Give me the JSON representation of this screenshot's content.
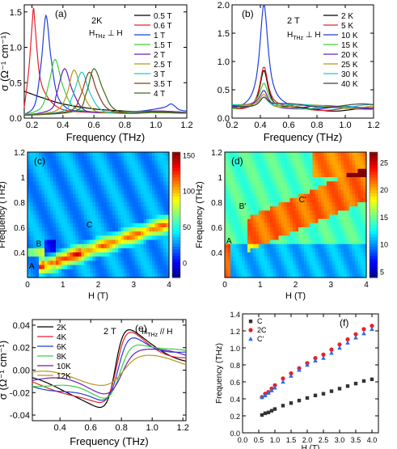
{
  "figure": {
    "chart_data": [
      {
        "panel": "(a)",
        "type": "line",
        "annotation": "2K",
        "annotation_sub": "H_THz ⊥ H",
        "xlabel": "Frequency (THz)",
        "ylabel": "σ (Ω⁻¹ cm⁻¹)",
        "xlim": [
          0.15,
          1.2
        ],
        "ylim": [
          0,
          1.6
        ],
        "xticks": [
          0.2,
          0.4,
          0.6,
          0.8,
          1.0,
          1.2
        ],
        "xtick_labels": [
          "0.2",
          "0.4",
          "0.6",
          "0.8",
          "1.0",
          "1.2"
        ],
        "yticks": [
          0,
          0.5,
          1.0,
          1.5
        ],
        "ytick_labels": [
          "0.0",
          "0.5",
          "1.0",
          "1.5"
        ],
        "legend_position": "right",
        "series": [
          {
            "name": "0.5 T",
            "color": "#000000",
            "x": [
              0.15,
              0.25,
              0.4,
              0.6,
              0.8,
              1.0,
              1.2
            ],
            "y": [
              0.38,
              0.3,
              0.2,
              0.13,
              0.1,
              0.08,
              0.07
            ]
          },
          {
            "name": "0.6 T",
            "color": "#e8202a",
            "x": [
              0.15,
              0.18,
              0.2,
              0.21,
              0.22,
              0.25,
              0.3,
              0.4,
              0.6,
              0.8,
              1.0,
              1.2
            ],
            "y": [
              0.15,
              0.7,
              1.3,
              1.55,
              1.3,
              0.6,
              0.3,
              0.12,
              0.08,
              0.08,
              0.1,
              0.08
            ]
          },
          {
            "name": "1 T",
            "color": "#1f3fdc",
            "x": [
              0.15,
              0.22,
              0.26,
              0.29,
              0.32,
              0.36,
              0.42,
              0.5,
              0.7,
              0.9,
              1.05,
              1.1,
              1.15,
              1.2
            ],
            "y": [
              0.05,
              0.2,
              0.8,
              1.45,
              0.9,
              0.35,
              0.15,
              0.1,
              0.08,
              0.1,
              0.15,
              0.2,
              0.12,
              0.1
            ]
          },
          {
            "name": "1.5 T",
            "color": "#3ccf3c",
            "x": [
              0.15,
              0.26,
              0.31,
              0.35,
              0.4,
              0.46,
              0.55,
              0.8,
              1.0,
              1.2
            ],
            "y": [
              0.05,
              0.15,
              0.5,
              0.83,
              0.45,
              0.18,
              0.1,
              0.09,
              0.1,
              0.08
            ]
          },
          {
            "name": "2 T",
            "color": "#6a1fb8",
            "x": [
              0.15,
              0.32,
              0.36,
              0.41,
              0.46,
              0.52,
              0.6,
              0.8,
              1.0,
              1.2
            ],
            "y": [
              0.04,
              0.12,
              0.35,
              0.7,
              0.4,
              0.15,
              0.08,
              0.08,
              0.1,
              0.08
            ]
          },
          {
            "name": "2.5 T",
            "color": "#b8961c",
            "x": [
              0.15,
              0.35,
              0.42,
              0.47,
              0.52,
              0.58,
              0.66,
              0.85,
              1.0,
              1.2
            ],
            "y": [
              0.04,
              0.1,
              0.3,
              0.68,
              0.4,
              0.15,
              0.08,
              0.08,
              0.08,
              0.07
            ]
          },
          {
            "name": "3 T",
            "color": "#1cc9c9",
            "x": [
              0.15,
              0.4,
              0.46,
              0.52,
              0.57,
              0.63,
              0.72,
              0.9,
              1.1,
              1.2
            ],
            "y": [
              0.04,
              0.1,
              0.3,
              0.65,
              0.38,
              0.15,
              0.07,
              0.08,
              0.08,
              0.07
            ]
          },
          {
            "name": "3.5 T",
            "color": "#8a3b1c",
            "x": [
              0.15,
              0.44,
              0.51,
              0.57,
              0.62,
              0.68,
              0.78,
              0.95,
              1.1,
              1.2
            ],
            "y": [
              0.04,
              0.1,
              0.3,
              0.65,
              0.38,
              0.15,
              0.07,
              0.08,
              0.08,
              0.07
            ]
          },
          {
            "name": "4 T",
            "color": "#3f6a1c",
            "x": [
              0.15,
              0.48,
              0.55,
              0.6,
              0.66,
              0.72,
              0.82,
              1.0,
              1.2
            ],
            "y": [
              0.04,
              0.1,
              0.35,
              0.7,
              0.4,
              0.15,
              0.07,
              0.08,
              0.07
            ]
          }
        ]
      },
      {
        "panel": "(b)",
        "type": "line",
        "annotation": "2 T",
        "annotation_sub": "H_THz ⊥ H",
        "xlabel": "Frequency (THz)",
        "xlim": [
          0.2,
          1.2
        ],
        "ylim": [
          0,
          2.0
        ],
        "xticks": [
          0.2,
          0.4,
          0.6,
          0.8,
          1.0,
          1.2
        ],
        "xtick_labels": [
          "0.2",
          "0.4",
          "0.6",
          "0.8",
          "1.0",
          "1.2"
        ],
        "yticks": [
          0,
          0.5,
          1.0,
          1.5,
          2.0
        ],
        "ytick_labels": [
          "0.0",
          "0.5",
          "1.0",
          "1.5",
          "2.0"
        ],
        "legend_position": "right",
        "series": [
          {
            "name": "2 K",
            "color": "#000000",
            "peak": 0.75
          },
          {
            "name": "5 K",
            "color": "#e8202a",
            "peak": 0.78
          },
          {
            "name": "10 K",
            "color": "#1f3fdc",
            "peak": 1.88
          },
          {
            "name": "15 K",
            "color": "#3ccf3c",
            "peak": 0.42
          },
          {
            "name": "20 K",
            "color": "#6a1fb8",
            "peak": 0.3
          },
          {
            "name": "25 K",
            "color": "#b8961c",
            "peak": 0.25
          },
          {
            "name": "30 K",
            "color": "#1cc9c9",
            "peak": 0.2
          },
          {
            "name": "40 K",
            "color": "#404040",
            "peak": 0.17
          }
        ]
      },
      {
        "panel": "(c)",
        "type": "heatmap",
        "xlabel": "H (T)",
        "ylabel": "Frequency (THz)",
        "xlim": [
          0,
          4
        ],
        "ylim": [
          0.2,
          1.2
        ],
        "xticks": [
          0,
          1,
          2,
          3,
          4
        ],
        "xtick_labels": [
          "0",
          "1",
          "2",
          "3",
          "4"
        ],
        "yticks": [
          0.4,
          0.6,
          0.8,
          1.0,
          1.2
        ],
        "ytick_labels": [
          "0.4",
          "0.6",
          "0.8",
          "1",
          "1.2"
        ],
        "colorbar_ticks": [
          0,
          50,
          100,
          150
        ],
        "colorbar_tick_labels": [
          "0",
          "50",
          "100",
          "150"
        ],
        "colorbar_range": [
          -20,
          155
        ],
        "labels": [
          "A",
          "B",
          "C"
        ]
      },
      {
        "panel": "(d)",
        "type": "heatmap",
        "xlabel": "H (T)",
        "ylabel": "Frequency (THz)",
        "xlim": [
          0,
          4
        ],
        "ylim": [
          0.2,
          1.2
        ],
        "xticks": [
          0,
          1,
          2,
          3,
          4
        ],
        "xtick_labels": [
          "0",
          "1",
          "2",
          "3",
          "4"
        ],
        "yticks": [
          0.4,
          0.6,
          0.8,
          1.0,
          1.2
        ],
        "ytick_labels": [
          "0.4",
          "0.6",
          "0.8",
          "1",
          "1.2"
        ],
        "colorbar_ticks": [
          5,
          10,
          15,
          20,
          25
        ],
        "colorbar_tick_labels": [
          "5",
          "10",
          "15",
          "20",
          "25"
        ],
        "colorbar_range": [
          4,
          27
        ],
        "labels": [
          "A",
          "B'",
          "C'"
        ]
      },
      {
        "panel": "(e)",
        "type": "line",
        "annotation": "2 T",
        "annotation_sub": "H_THz // H",
        "xlabel": "Frequency (THz)",
        "ylabel": "σ (Ω⁻¹ cm⁻¹)",
        "xlim": [
          0.22,
          1.22
        ],
        "ylim": [
          -0.045,
          0.045
        ],
        "xticks": [
          0.4,
          0.6,
          0.8,
          1.0,
          1.2
        ],
        "xtick_labels": [
          "0.4",
          "0.6",
          "0.8",
          "1.0",
          "1.2"
        ],
        "yticks": [
          -0.04,
          -0.02,
          0,
          0.02,
          0.04
        ],
        "ytick_labels": [
          "-0.04",
          "-0.02",
          "0.00",
          "0.02",
          "0.04"
        ],
        "legend_position": "top-left",
        "series": [
          {
            "name": "2K",
            "color": "#000000",
            "amp": 1.0
          },
          {
            "name": "4K",
            "color": "#e8202a",
            "amp": 0.98
          },
          {
            "name": "6K",
            "color": "#1f3fdc",
            "amp": 0.96
          },
          {
            "name": "8K",
            "color": "#3ccf3c",
            "amp": 0.82
          },
          {
            "name": "10K",
            "color": "#6a1fb8",
            "amp": 0.58
          },
          {
            "name": "12K",
            "color": "#b8961c",
            "amp": 0.3
          }
        ]
      },
      {
        "panel": "(f)",
        "type": "scatter",
        "xlabel": "H (T)",
        "ylabel": "Frequency (THz)",
        "xlim": [
          0,
          4.2
        ],
        "ylim": [
          0,
          1.4
        ],
        "xticks": [
          0,
          0.5,
          1.0,
          1.5,
          2.0,
          2.5,
          3.0,
          3.5,
          4.0
        ],
        "xtick_labels": [
          "0.0",
          "0.5",
          "1.0",
          "1.5",
          "2.0",
          "2.5",
          "3.0",
          "3.5",
          "4.0"
        ],
        "yticks": [
          0,
          0.2,
          0.4,
          0.6,
          0.8,
          1.0,
          1.2,
          1.4
        ],
        "ytick_labels": [
          "0.0",
          "0.2",
          "0.4",
          "0.6",
          "0.8",
          "1.0",
          "1.2",
          "1.4"
        ],
        "legend_position": "top-left",
        "series": [
          {
            "name": "C",
            "marker": "square",
            "color": "#333333",
            "x": [
              0.6,
              0.7,
              0.8,
              0.9,
              1.0,
              1.25,
              1.5,
              1.75,
              2.0,
              2.25,
              2.5,
              2.75,
              3.0,
              3.25,
              3.5,
              3.75,
              4.0
            ],
            "y": [
              0.21,
              0.23,
              0.24,
              0.26,
              0.28,
              0.32,
              0.35,
              0.38,
              0.41,
              0.44,
              0.46,
              0.49,
              0.52,
              0.55,
              0.58,
              0.61,
              0.63
            ]
          },
          {
            "name": "2C",
            "marker": "circle",
            "color": "#e8202a",
            "x": [
              0.6,
              0.7,
              0.8,
              0.9,
              1.0,
              1.25,
              1.5,
              1.75,
              2.0,
              2.25,
              2.5,
              2.75,
              3.0,
              3.25,
              3.5,
              3.75,
              4.0
            ],
            "y": [
              0.42,
              0.46,
              0.48,
              0.52,
              0.56,
              0.64,
              0.7,
              0.76,
              0.82,
              0.88,
              0.92,
              0.98,
              1.04,
              1.1,
              1.16,
              1.22,
              1.26
            ]
          },
          {
            "name": "C'",
            "marker": "triangle",
            "color": "#2a6fe0",
            "x": [
              0.6,
              0.7,
              0.8,
              0.9,
              1.0,
              1.25,
              1.5,
              1.75,
              2.0,
              2.25,
              2.5,
              2.75,
              3.0,
              3.25,
              3.5,
              3.75,
              4.0
            ],
            "y": [
              0.42,
              0.44,
              0.47,
              0.5,
              0.53,
              0.6,
              0.67,
              0.74,
              0.8,
              0.85,
              0.88,
              0.94,
              1.0,
              1.06,
              1.12,
              1.17,
              1.22
            ]
          }
        ]
      }
    ]
  }
}
